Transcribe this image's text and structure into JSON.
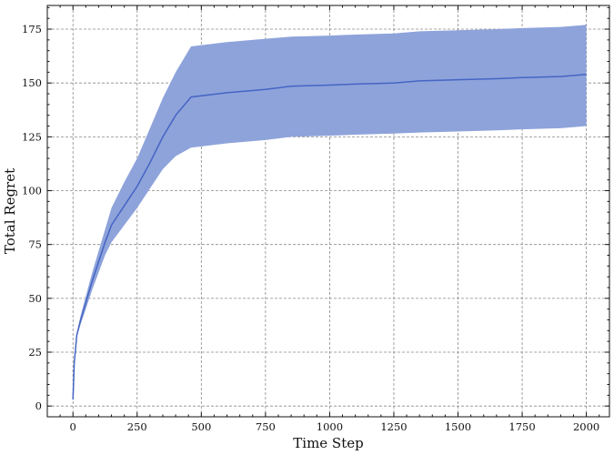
{
  "chart_data": {
    "type": "area",
    "xlabel": "Time Step",
    "ylabel": "Total Regret",
    "xlim": [
      -100,
      2090
    ],
    "ylim": [
      -5,
      186
    ],
    "xticks": [
      0,
      250,
      500,
      750,
      1000,
      1250,
      1500,
      1750,
      2000
    ],
    "yticks": [
      0,
      25,
      50,
      75,
      100,
      125,
      150,
      175
    ],
    "grid": true,
    "colors": {
      "line": "#4565c4",
      "band": "#8ea3da"
    },
    "series": [
      {
        "x": [
          0,
          5,
          15,
          30,
          50,
          75,
          100,
          125,
          150,
          200,
          250,
          300,
          350,
          400,
          460,
          600,
          750,
          850,
          1000,
          1100,
          1250,
          1350,
          1500,
          1650,
          1750,
          1900,
          2000
        ],
        "mean": [
          3,
          20,
          33,
          40,
          48,
          58,
          67,
          76,
          84,
          93,
          102,
          113,
          125,
          135,
          143.5,
          145.5,
          147,
          148.5,
          149,
          149.5,
          150,
          151,
          151.5,
          152,
          152.5,
          153,
          154
        ],
        "lower": [
          3,
          19,
          32,
          38,
          45,
          54,
          62,
          70,
          76,
          84,
          92,
          101,
          110,
          116,
          120,
          122,
          123.5,
          125,
          125.5,
          126,
          126.5,
          127,
          127.5,
          128,
          128.5,
          129,
          130
        ],
        "upper": [
          3,
          21,
          34,
          42,
          51,
          62,
          72,
          82,
          92,
          104,
          115,
          129,
          143,
          155,
          167,
          169,
          170.5,
          171.5,
          172,
          172.5,
          173,
          174,
          174.5,
          175,
          175.5,
          176,
          177
        ]
      }
    ]
  }
}
